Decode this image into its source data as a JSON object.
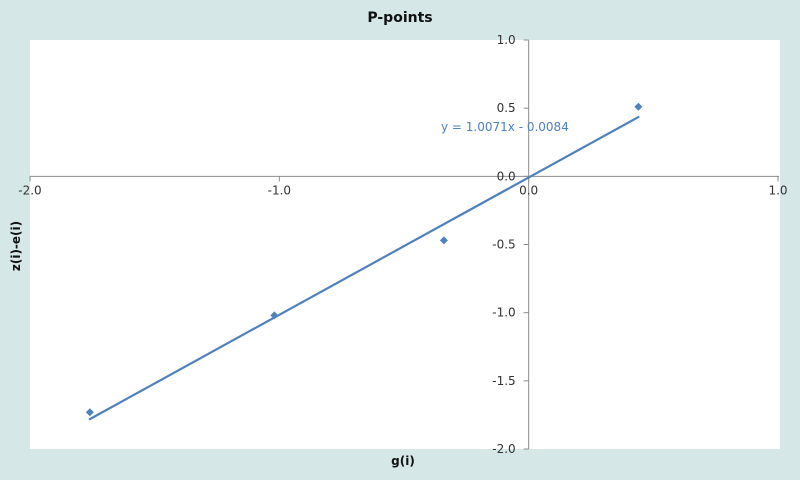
{
  "chart_data": {
    "type": "scatter",
    "title": "P-points",
    "xlabel": "g(i)",
    "ylabel": "z(i)-e(i)",
    "xlim": [
      -2.0,
      1.0
    ],
    "ylim": [
      -2.0,
      1.0
    ],
    "x_ticks": [
      -2.0,
      -1.0,
      0.0,
      1.0
    ],
    "y_ticks": [
      -2.0,
      -1.5,
      -1.0,
      -0.5,
      0.0,
      0.5,
      1.0
    ],
    "x_tick_labels": [
      "-2.0",
      "-1.0",
      "0.0",
      "1.0"
    ],
    "y_tick_labels": [
      "-2.0",
      "-1.5",
      "-1.0",
      "-0.5",
      "0.0",
      "0.5",
      "1.0"
    ],
    "grid": false,
    "legend": "none",
    "series": [
      {
        "x": [
          -1.76,
          -1.02,
          -0.34,
          0.44
        ],
        "y": [
          -1.73,
          -1.02,
          -0.47,
          0.51
        ],
        "color": "#4f81bd"
      }
    ],
    "trendline": {
      "slope": 1.0071,
      "intercept": -0.0084,
      "x_range": [
        -1.76,
        0.44
      ],
      "equation_label": "y = 1.0071x - 0.0084",
      "color": "#4f81bd"
    }
  }
}
